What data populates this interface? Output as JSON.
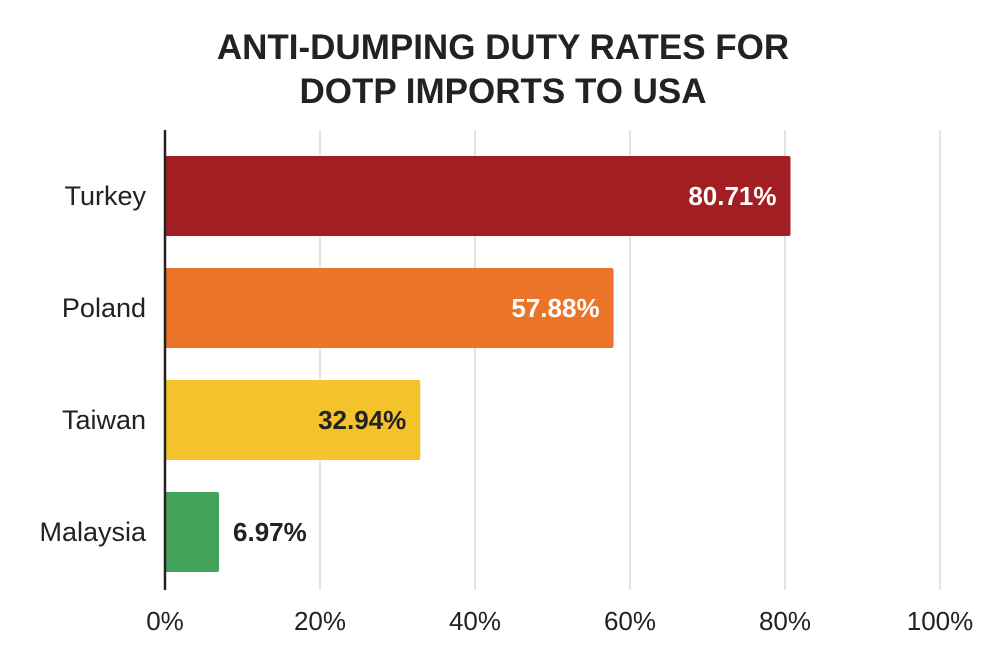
{
  "chart_data": {
    "type": "bar",
    "orientation": "horizontal",
    "title_lines": [
      "ANTI-DUMPING DUTY RATES FOR",
      "DOTP IMPORTS TO USA"
    ],
    "categories": [
      "Turkey",
      "Poland",
      "Taiwan",
      "Malaysia"
    ],
    "values": [
      80.71,
      57.88,
      32.94,
      6.97
    ],
    "value_labels": [
      "80.71%",
      "57.88%",
      "32.94%",
      "6.97%"
    ],
    "colors": [
      "#a11e22",
      "#ec7428",
      "#f4c32c",
      "#44a25b"
    ],
    "label_colors": [
      "#ffffff",
      "#ffffff",
      "#222222",
      "#222222"
    ],
    "xlim": [
      0,
      100
    ],
    "x_ticks": [
      0,
      20,
      40,
      60,
      80,
      100
    ],
    "x_tick_labels": [
      "0%",
      "20%",
      "40%",
      "60%",
      "80%",
      "100%"
    ],
    "grid": true,
    "xlabel": "",
    "ylabel": ""
  }
}
